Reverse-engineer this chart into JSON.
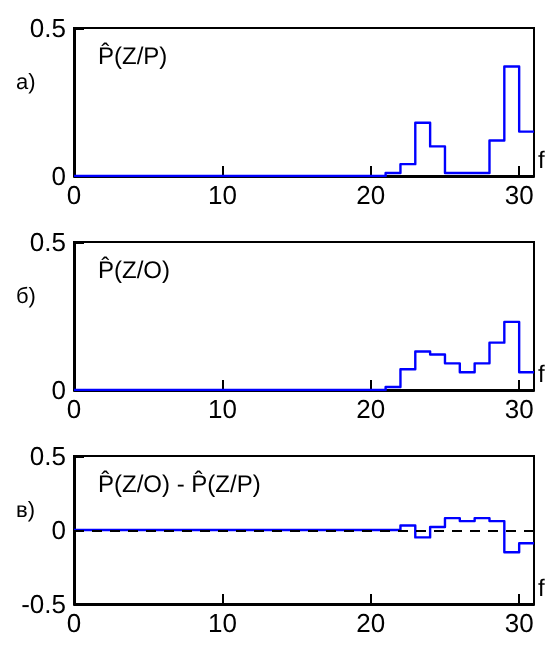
{
  "chart_data": [
    {
      "type": "step",
      "title": "P̂(Z/P)",
      "ylabel": "а)",
      "xlabel": "f",
      "xlim": [
        0,
        31
      ],
      "xticks": [
        0,
        10,
        20,
        30
      ],
      "ylim": [
        0,
        0.5
      ],
      "yticks": [
        0,
        0.5
      ],
      "grid": false,
      "marker": "none",
      "line_style": "solid",
      "series": [
        {
          "color": "#0000ff",
          "x": [
            0,
            21,
            22,
            23,
            24,
            25,
            28,
            29,
            30,
            31
          ],
          "values": [
            0,
            0.01,
            0.04,
            0.18,
            0.1,
            0.01,
            0.12,
            0.37,
            0.15,
            0.15
          ]
        }
      ]
    },
    {
      "type": "step",
      "title": "P̂(Z/O)",
      "ylabel": "б)",
      "xlabel": "f",
      "xlim": [
        0,
        31
      ],
      "xticks": [
        0,
        10,
        20,
        30
      ],
      "ylim": [
        0,
        0.5
      ],
      "yticks": [
        0,
        0.5
      ],
      "grid": false,
      "marker": "none",
      "line_style": "solid",
      "series": [
        {
          "color": "#0000ff",
          "x": [
            0,
            21,
            22,
            23,
            24,
            25,
            26,
            27,
            28,
            29,
            30,
            31
          ],
          "values": [
            0,
            0.01,
            0.07,
            0.13,
            0.12,
            0.09,
            0.06,
            0.09,
            0.16,
            0.23,
            0.06,
            0.06
          ]
        }
      ]
    },
    {
      "type": "step",
      "title": "P̂(Z/O) - P̂(Z/P)",
      "ylabel": "в)",
      "xlabel": "f",
      "xlim": [
        0,
        31
      ],
      "xticks": [
        0,
        10,
        20,
        30
      ],
      "ylim": [
        -0.5,
        0.5
      ],
      "yticks": [
        -0.5,
        0,
        0.5
      ],
      "grid": false,
      "marker": "none",
      "line_style": "solid",
      "ref_lines": [
        {
          "axis": "y",
          "value": 0,
          "color": "#000000",
          "line_style": "dashed"
        }
      ],
      "series": [
        {
          "color": "#0000ff",
          "x": [
            0,
            22,
            23,
            24,
            25,
            26,
            27,
            28,
            29,
            30,
            31
          ],
          "values": [
            0,
            0.03,
            -0.05,
            0.02,
            0.08,
            0.06,
            0.08,
            0.06,
            -0.15,
            -0.09,
            -0.09
          ]
        }
      ]
    }
  ]
}
